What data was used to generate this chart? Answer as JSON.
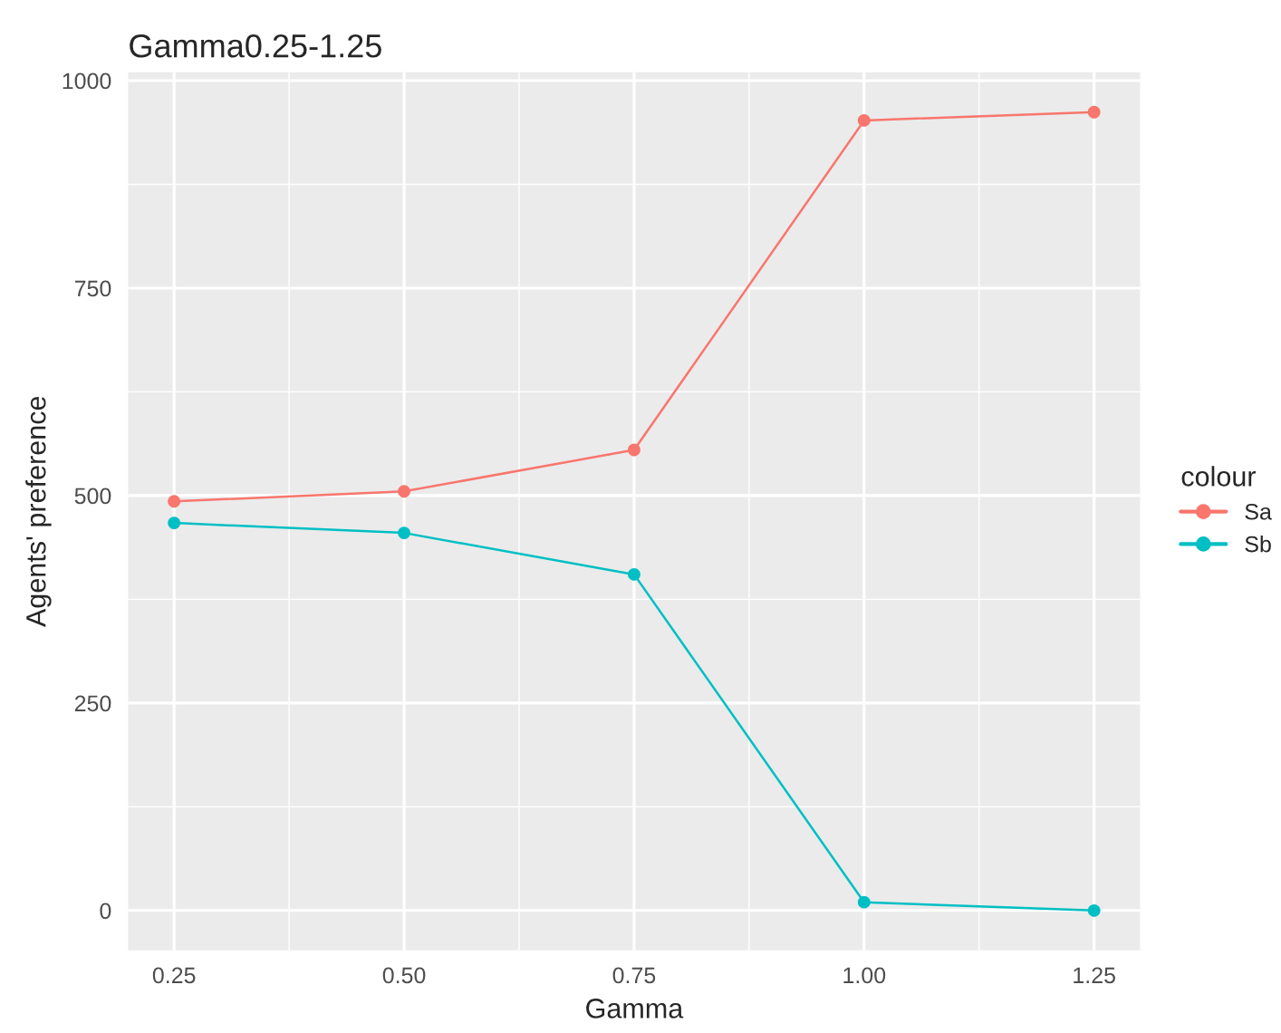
{
  "chart_data": {
    "type": "line",
    "title": "Gamma0.25-1.25",
    "xlabel": "Gamma",
    "ylabel": "Agents' preference",
    "legend_title": "colour",
    "x": [
      0.25,
      0.5,
      0.75,
      1.0,
      1.25
    ],
    "series": [
      {
        "name": "Sa",
        "color": "#f8766d",
        "values": [
          493,
          505,
          555,
          952,
          962
        ]
      },
      {
        "name": "Sb",
        "color": "#00bfc4",
        "values": [
          467,
          455,
          405,
          10,
          0
        ]
      }
    ],
    "xlim": [
      0.2,
      1.3
    ],
    "ylim": [
      -48,
      1010
    ],
    "xticks": [
      {
        "value": 0.25,
        "label": "0.25"
      },
      {
        "value": 0.5,
        "label": "0.50"
      },
      {
        "value": 0.75,
        "label": "0.75"
      },
      {
        "value": 1.0,
        "label": "1.00"
      },
      {
        "value": 1.25,
        "label": "1.25"
      }
    ],
    "yticks": [
      0,
      250,
      500,
      750,
      1000
    ],
    "grid": true,
    "legend": "right",
    "marker": "circle",
    "line_style": "solid"
  }
}
